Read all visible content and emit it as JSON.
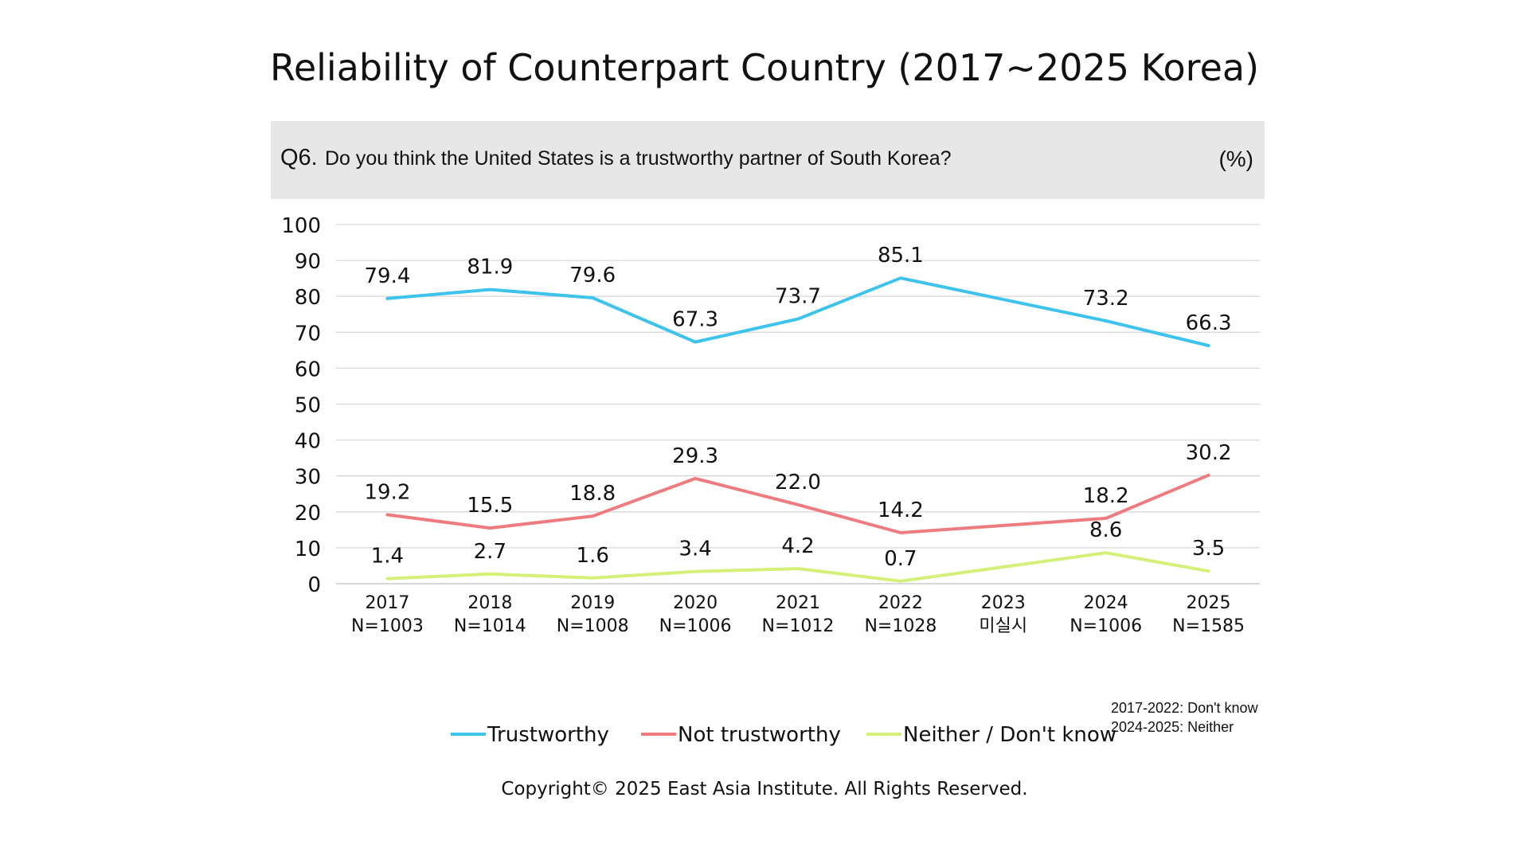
{
  "page": {
    "title": "Reliability of Counterpart Country (2017~2025 Korea)",
    "question_label": "Q6.",
    "question_text": "Do you think the United States is a trustworthy partner of South Korea?",
    "unit": "(%)",
    "note_lines": [
      "2017-2022: Don't know",
      "2024-2025: Neither"
    ],
    "copyright": "Copyright© 2025 East Asia Institute. All Rights Reserved."
  },
  "chart_data": {
    "type": "line",
    "x": [
      "2017",
      "2018",
      "2019",
      "2020",
      "2021",
      "2022",
      "2023",
      "2024",
      "2025"
    ],
    "x_sublabels": [
      "N=1003",
      "N=1014",
      "N=1008",
      "N=1006",
      "N=1012",
      "N=1028",
      "미실시",
      "N=1006",
      "N=1585"
    ],
    "ylim": [
      0,
      100
    ],
    "yticks": [
      0,
      10,
      20,
      30,
      40,
      50,
      60,
      70,
      80,
      90,
      100
    ],
    "grid": true,
    "legend_position": "bottom",
    "series": [
      {
        "name": "Trustworthy",
        "color": "#3ec3ec",
        "values": [
          79.4,
          81.9,
          79.6,
          67.3,
          73.7,
          85.1,
          null,
          73.2,
          66.3
        ],
        "labels": [
          "79.4",
          "81.9",
          "79.6",
          "67.3",
          "73.7",
          "85.1",
          null,
          "73.2",
          "66.3"
        ]
      },
      {
        "name": "Not trustworthy",
        "color": "#ee7b80",
        "values": [
          19.2,
          15.5,
          18.8,
          29.3,
          22.0,
          14.2,
          null,
          18.2,
          30.2
        ],
        "labels": [
          "19.2",
          "15.5",
          "18.8",
          "29.3",
          "22.0",
          "14.2",
          null,
          "18.2",
          "30.2"
        ]
      },
      {
        "name": "Neither / Don't know",
        "color": "#d4f078",
        "values": [
          1.4,
          2.7,
          1.6,
          3.4,
          4.2,
          0.7,
          null,
          8.6,
          3.5
        ],
        "labels": [
          "1.4",
          "2.7",
          "1.6",
          "3.4",
          "4.2",
          "0.7",
          null,
          "8.6",
          "3.5"
        ]
      }
    ]
  }
}
